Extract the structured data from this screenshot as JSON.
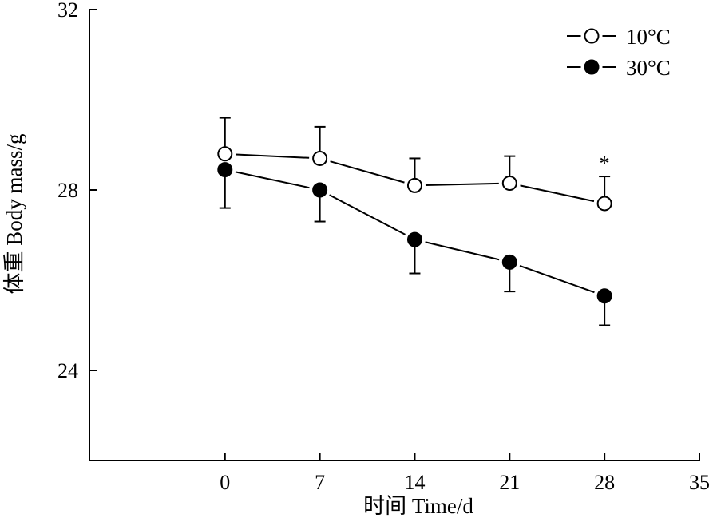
{
  "chart_data": {
    "type": "line",
    "xlabel": "时间 Time/d",
    "ylabel": "体重 Body mass/g",
    "xlim": [
      -10,
      35
    ],
    "ylim": [
      22,
      32
    ],
    "x_ticks": [
      0,
      7,
      14,
      21,
      28,
      35
    ],
    "y_ticks": [
      24,
      28,
      32
    ],
    "grid": false,
    "legend": "top-right",
    "series": [
      {
        "name": "10°C",
        "marker": "open-circle",
        "color": "#000000",
        "x": [
          0,
          7,
          14,
          21,
          28
        ],
        "y": [
          28.8,
          28.7,
          28.1,
          28.15,
          27.7
        ],
        "error": [
          0.8,
          0.7,
          0.6,
          0.6,
          0.6
        ],
        "error_direction": "up"
      },
      {
        "name": "30°C",
        "marker": "filled-circle",
        "color": "#000000",
        "x": [
          0,
          7,
          14,
          21,
          28
        ],
        "y": [
          28.45,
          28.0,
          26.9,
          26.4,
          25.65
        ],
        "error": [
          0.85,
          0.7,
          0.75,
          0.65,
          0.65
        ],
        "error_direction": "down"
      }
    ],
    "annotations": [
      {
        "text": "*",
        "x": 28,
        "y": 28.65
      }
    ]
  }
}
